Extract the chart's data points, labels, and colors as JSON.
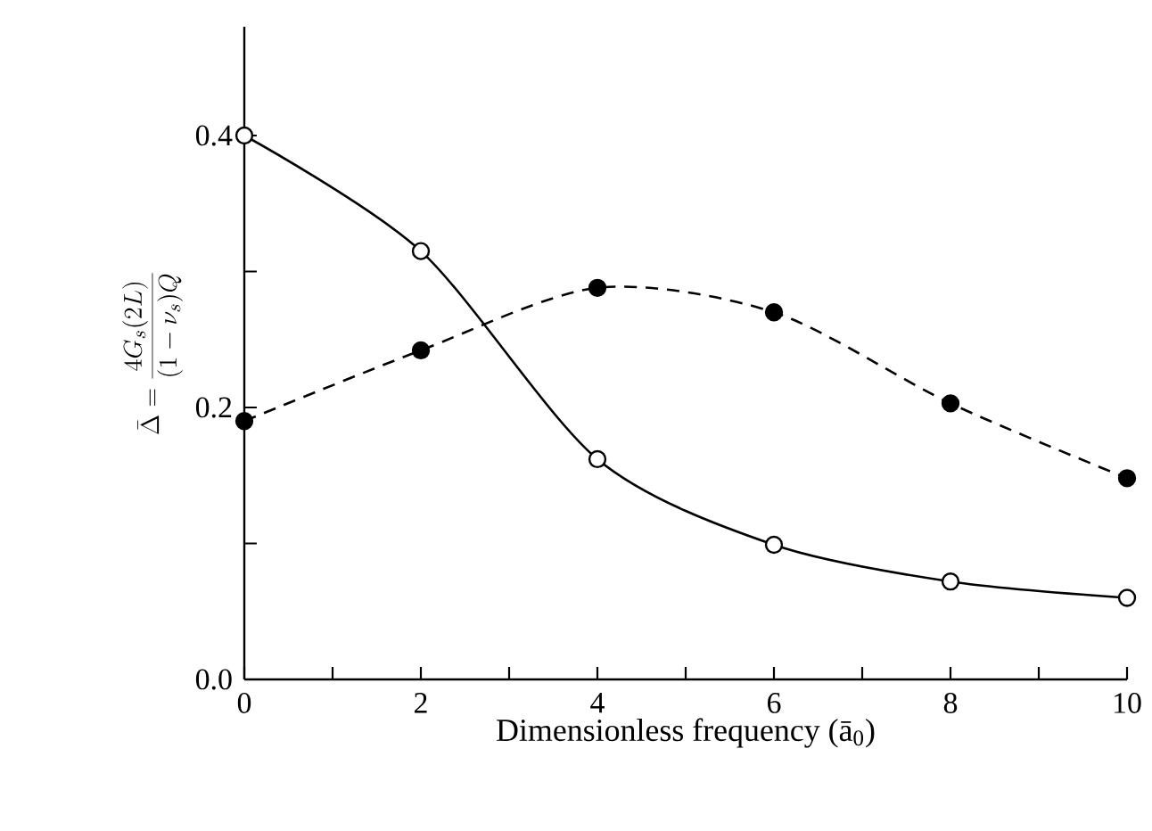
{
  "chart_data": {
    "type": "line",
    "xlabel": "Dimensionless frequency (ā$_{0}$)",
    "ylabel": "\\bar{\\Delta} = \\frac{4G_s(2L)}{(1-\\nu_s)Q}",
    "x": [
      0,
      2,
      4,
      6,
      8,
      10
    ],
    "series": [
      {
        "color": "#000000",
        "line_style": "solid",
        "marker": "circle",
        "values": [
          0.4,
          0.315,
          0.162,
          0.099,
          0.072,
          0.06
        ]
      },
      {
        "color": "#000000",
        "line_style": "dashed",
        "marker": "circle",
        "values": [
          0.19,
          0.242,
          0.288,
          0.27,
          0.203,
          0.148
        ]
      }
    ],
    "xlim": [
      0,
      10
    ],
    "ylim": [
      0,
      0.48
    ],
    "xticks": [
      0,
      {
        "value": 1,
        "label": null
      },
      2,
      {
        "value": 3,
        "label": null
      },
      4,
      {
        "value": 5,
        "label": null
      },
      6,
      {
        "value": 7,
        "label": null
      },
      8,
      {
        "value": 9,
        "label": null
      },
      10
    ],
    "yticks": [
      {
        "value": 0,
        "label": "0.0"
      },
      {
        "value": 0.1,
        "label": null
      },
      {
        "value": 0.2,
        "label": "0.2"
      },
      {
        "value": 0.3,
        "label": null
      },
      {
        "value": 0.4,
        "label": "0.4"
      }
    ],
    "grid": false
  }
}
